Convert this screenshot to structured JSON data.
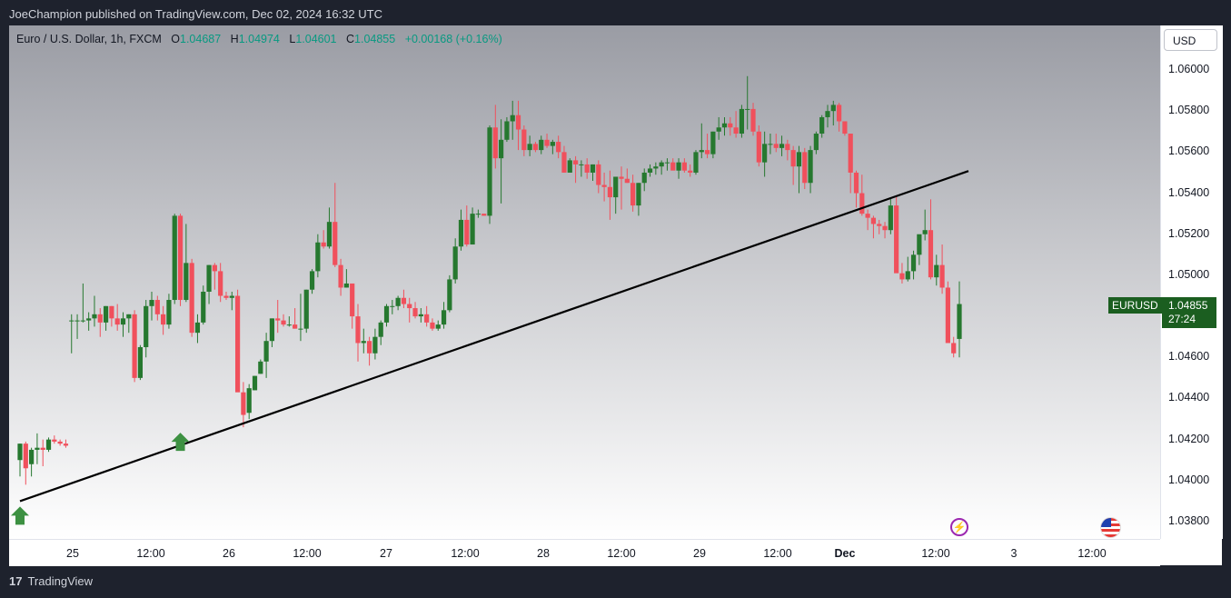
{
  "header": {
    "publisher": "JoeChampion published on TradingView.com, Dec 02, 2024 16:32 UTC"
  },
  "legend": {
    "symbol": "Euro / U.S. Dollar, 1h, FXCM",
    "o_label": "O",
    "o": "1.04687",
    "h_label": "H",
    "h": "1.04974",
    "l_label": "L",
    "l": "1.04601",
    "c_label": "C",
    "c": "1.04855",
    "change": "+0.00168 (+0.16%)"
  },
  "currency_button": "USD",
  "last_price": {
    "symbol": "EURUSD",
    "price": "1.04855",
    "countdown": "27:24"
  },
  "footer": {
    "brand": "TradingView"
  },
  "colors": {
    "up": "#26782f",
    "down": "#f0505c",
    "label_bg": "#1b5e20",
    "arrow": "#3d9142",
    "trendline": "#000000"
  },
  "icons": {
    "event_1": "lightning-icon",
    "event_2": "us-flag-icon"
  },
  "chart_data": {
    "type": "candlestick",
    "title": "Euro / U.S. Dollar, 1h, FXCM",
    "ylim": [
      1.0372,
      1.0618
    ],
    "y_ticks": [
      "1.06000",
      "1.05800",
      "1.05600",
      "1.05400",
      "1.05200",
      "1.05000",
      "1.04800",
      "1.04600",
      "1.04400",
      "1.04200",
      "1.04000",
      "1.03800"
    ],
    "x_ticks": [
      {
        "label": "25",
        "bold": false
      },
      {
        "label": "12:00",
        "bold": false
      },
      {
        "label": "26",
        "bold": false
      },
      {
        "label": "12:00",
        "bold": false
      },
      {
        "label": "27",
        "bold": false
      },
      {
        "label": "12:00",
        "bold": false
      },
      {
        "label": "28",
        "bold": false
      },
      {
        "label": "12:00",
        "bold": false
      },
      {
        "label": "29",
        "bold": false
      },
      {
        "label": "12:00",
        "bold": false
      },
      {
        "label": "Dec",
        "bold": true
      },
      {
        "label": "12:00",
        "bold": false
      },
      {
        "label": "3",
        "bold": false
      },
      {
        "label": "12:00",
        "bold": false
      }
    ],
    "bar_interval": "1h",
    "first_bar": "2024-11-24 22:00",
    "last_bar": "2024-12-02 16:00",
    "bars": [
      [
        1.041,
        1.0418,
        1.0402,
        1.0418
      ],
      [
        1.0418,
        1.0419,
        1.0398,
        1.0406
      ],
      [
        1.0408,
        1.0416,
        1.0402,
        1.0415
      ],
      [
        1.0415,
        1.0423,
        1.0408,
        1.0416
      ],
      [
        1.0416,
        1.042,
        1.0407,
        1.0415
      ],
      [
        1.0415,
        1.0421,
        1.0414,
        1.042
      ],
      [
        1.042,
        1.0422,
        1.0418,
        1.0419
      ],
      [
        1.0419,
        1.042,
        1.0417,
        1.0418
      ],
      [
        1.0418,
        1.042,
        1.0416,
        1.0417
      ],
      [
        1.0478,
        1.0481,
        1.0462,
        1.0478
      ],
      [
        1.0478,
        1.0481,
        1.0469,
        1.0478
      ],
      [
        1.0478,
        1.0496,
        1.0477,
        1.0478
      ],
      [
        1.0478,
        1.0482,
        1.0473,
        1.0479
      ],
      [
        1.0479,
        1.049,
        1.0475,
        1.0481
      ],
      [
        1.0481,
        1.0484,
        1.047,
        1.0477
      ],
      [
        1.0477,
        1.0485,
        1.0473,
        1.0485
      ],
      [
        1.0485,
        1.0485,
        1.0475,
        1.0479
      ],
      [
        1.0479,
        1.0486,
        1.0473,
        1.0476
      ],
      [
        1.0476,
        1.0482,
        1.047,
        1.0479
      ],
      [
        1.0479,
        1.0481,
        1.0472,
        1.0481
      ],
      [
        1.0481,
        1.0483,
        1.0448,
        1.045
      ],
      [
        1.045,
        1.0466,
        1.0449,
        1.0465
      ],
      [
        1.0465,
        1.0488,
        1.046,
        1.0485
      ],
      [
        1.0485,
        1.0492,
        1.0478,
        1.0488
      ],
      [
        1.0488,
        1.049,
        1.0478,
        1.0481
      ],
      [
        1.0481,
        1.0485,
        1.0471,
        1.0476
      ],
      [
        1.0476,
        1.0491,
        1.0474,
        1.0488
      ],
      [
        1.0488,
        1.053,
        1.0486,
        1.0529
      ],
      [
        1.0529,
        1.053,
        1.0485,
        1.0488
      ],
      [
        1.0488,
        1.0525,
        1.0487,
        1.0506
      ],
      [
        1.0506,
        1.0508,
        1.047,
        1.0472
      ],
      [
        1.0472,
        1.0481,
        1.0467,
        1.0477
      ],
      [
        1.0477,
        1.0495,
        1.0476,
        1.0492
      ],
      [
        1.0492,
        1.0505,
        1.0486,
        1.0505
      ],
      [
        1.0505,
        1.0506,
        1.0493,
        1.0502
      ],
      [
        1.0502,
        1.0506,
        1.0487,
        1.049
      ],
      [
        1.049,
        1.0492,
        1.0488,
        1.0489
      ],
      [
        1.0489,
        1.0492,
        1.0483,
        1.049
      ],
      [
        1.049,
        1.0493,
        1.0445,
        1.0443
      ],
      [
        1.0443,
        1.0448,
        1.0426,
        1.0432
      ],
      [
        1.0433,
        1.0447,
        1.043,
        1.0445
      ],
      [
        1.0444,
        1.0451,
        1.0444,
        1.0451
      ],
      [
        1.0452,
        1.0459,
        1.0452,
        1.0458
      ],
      [
        1.0458,
        1.0472,
        1.045,
        1.0468
      ],
      [
        1.0468,
        1.0479,
        1.0465,
        1.0479
      ],
      [
        1.0479,
        1.0488,
        1.0472,
        1.0478
      ],
      [
        1.0478,
        1.0481,
        1.0475,
        1.0476
      ],
      [
        1.0476,
        1.048,
        1.0475,
        1.0476
      ],
      [
        1.0476,
        1.0484,
        1.0474,
        1.0474
      ],
      [
        1.0474,
        1.0491,
        1.0468,
        1.0474
      ],
      [
        1.0474,
        1.0493,
        1.0472,
        1.0493
      ],
      [
        1.0493,
        1.0503,
        1.0491,
        1.0502
      ],
      [
        1.0502,
        1.052,
        1.0499,
        1.0516
      ],
      [
        1.0516,
        1.0522,
        1.0513,
        1.0514
      ],
      [
        1.0514,
        1.0533,
        1.0513,
        1.0526
      ],
      [
        1.0526,
        1.0545,
        1.0504,
        1.0505
      ],
      [
        1.0505,
        1.0508,
        1.049,
        1.0494
      ],
      [
        1.0494,
        1.0503,
        1.0494,
        1.0496
      ],
      [
        1.0496,
        1.0495,
        1.0474,
        1.048
      ],
      [
        1.048,
        1.0486,
        1.0458,
        1.0467
      ],
      [
        1.0467,
        1.0474,
        1.0462,
        1.0468
      ],
      [
        1.0468,
        1.047,
        1.0456,
        1.0462
      ],
      [
        1.0462,
        1.0474,
        1.0459,
        1.047
      ],
      [
        1.047,
        1.0478,
        1.0466,
        1.0477
      ],
      [
        1.0477,
        1.0486,
        1.0475,
        1.0485
      ],
      [
        1.0485,
        1.0488,
        1.0481,
        1.0485
      ],
      [
        1.0485,
        1.049,
        1.0483,
        1.0489
      ],
      [
        1.0489,
        1.0493,
        1.0484,
        1.0486
      ],
      [
        1.0486,
        1.0489,
        1.0477,
        1.0484
      ],
      [
        1.0484,
        1.0487,
        1.0479,
        1.048
      ],
      [
        1.048,
        1.0484,
        1.0477,
        1.0481
      ],
      [
        1.0481,
        1.0485,
        1.0475,
        1.0477
      ],
      [
        1.0477,
        1.0479,
        1.0473,
        1.0474
      ],
      [
        1.0474,
        1.0478,
        1.0473,
        1.0476
      ],
      [
        1.0476,
        1.0487,
        1.0474,
        1.0483
      ],
      [
        1.0483,
        1.05,
        1.0482,
        1.0498
      ],
      [
        1.0498,
        1.0518,
        1.0496,
        1.0514
      ],
      [
        1.0514,
        1.0532,
        1.0512,
        1.0527
      ],
      [
        1.0527,
        1.0534,
        1.0514,
        1.0515
      ],
      [
        1.0515,
        1.0533,
        1.0515,
        1.053
      ],
      [
        1.053,
        1.0532,
        1.0528,
        1.053
      ],
      [
        1.053,
        1.053,
        1.0529,
        1.0529
      ],
      [
        1.0529,
        1.0573,
        1.0525,
        1.0572
      ],
      [
        1.0572,
        1.0583,
        1.0552,
        1.0557
      ],
      [
        1.0557,
        1.0576,
        1.0535,
        1.0566
      ],
      [
        1.0566,
        1.0577,
        1.0565,
        1.0575
      ],
      [
        1.0575,
        1.0585,
        1.0566,
        1.0578
      ],
      [
        1.0578,
        1.0585,
        1.0561,
        1.0571
      ],
      [
        1.0571,
        1.0573,
        1.0558,
        1.0561
      ],
      [
        1.0561,
        1.0568,
        1.0558,
        1.0564
      ],
      [
        1.0564,
        1.0565,
        1.056,
        1.0561
      ],
      [
        1.0561,
        1.0568,
        1.0559,
        1.0566
      ],
      [
        1.0566,
        1.0569,
        1.0562,
        1.0563
      ],
      [
        1.0563,
        1.0566,
        1.0559,
        1.0565
      ],
      [
        1.0565,
        1.0568,
        1.0557,
        1.056
      ],
      [
        1.056,
        1.0563,
        1.055,
        1.055
      ],
      [
        1.055,
        1.0557,
        1.055,
        1.0556
      ],
      [
        1.0556,
        1.0558,
        1.0545,
        1.0554
      ],
      [
        1.0554,
        1.0556,
        1.0548,
        1.0554
      ],
      [
        1.0554,
        1.0557,
        1.0547,
        1.055
      ],
      [
        1.055,
        1.0554,
        1.0546,
        1.0554
      ],
      [
        1.0554,
        1.0556,
        1.054,
        1.0544
      ],
      [
        1.0544,
        1.055,
        1.0536,
        1.0543
      ],
      [
        1.0543,
        1.0551,
        1.0527,
        1.0538
      ],
      [
        1.0538,
        1.0545,
        1.053,
        1.0548
      ],
      [
        1.0548,
        1.0553,
        1.0532,
        1.0547
      ],
      [
        1.0547,
        1.0552,
        1.0545,
        1.0545
      ],
      [
        1.0545,
        1.0549,
        1.0531,
        1.0534
      ],
      [
        1.0534,
        1.0545,
        1.0529,
        1.0545
      ],
      [
        1.0545,
        1.0552,
        1.0541,
        1.055
      ],
      [
        1.055,
        1.0554,
        1.0548,
        1.0552
      ],
      [
        1.0552,
        1.0555,
        1.0549,
        1.0553
      ],
      [
        1.0553,
        1.0556,
        1.0549,
        1.0555
      ],
      [
        1.0555,
        1.0557,
        1.0551,
        1.0555
      ],
      [
        1.0555,
        1.0557,
        1.0552,
        1.0551
      ],
      [
        1.0551,
        1.0557,
        1.0547,
        1.0555
      ],
      [
        1.0555,
        1.0557,
        1.055,
        1.0551
      ],
      [
        1.0551,
        1.0554,
        1.0548,
        1.055
      ],
      [
        1.055,
        1.0561,
        1.0549,
        1.056
      ],
      [
        1.056,
        1.0574,
        1.0557,
        1.0561
      ],
      [
        1.0561,
        1.0569,
        1.0557,
        1.0559
      ],
      [
        1.0559,
        1.057,
        1.0557,
        1.057
      ],
      [
        1.057,
        1.0577,
        1.0566,
        1.0572
      ],
      [
        1.0572,
        1.0577,
        1.0568,
        1.0574
      ],
      [
        1.0574,
        1.0577,
        1.0568,
        1.0572
      ],
      [
        1.0572,
        1.058,
        1.0567,
        1.0569
      ],
      [
        1.0569,
        1.0583,
        1.0567,
        1.0581
      ],
      [
        1.0581,
        1.0597,
        1.0571,
        1.0581
      ],
      [
        1.0581,
        1.0584,
        1.0568,
        1.057
      ],
      [
        1.057,
        1.0573,
        1.0553,
        1.0555
      ],
      [
        1.0555,
        1.057,
        1.0548,
        1.0564
      ],
      [
        1.0564,
        1.0569,
        1.0559,
        1.0564
      ],
      [
        1.0564,
        1.0569,
        1.056,
        1.0562
      ],
      [
        1.0562,
        1.0568,
        1.0558,
        1.0564
      ],
      [
        1.0564,
        1.0566,
        1.0556,
        1.0561
      ],
      [
        1.0561,
        1.0563,
        1.0544,
        1.0553
      ],
      [
        1.0553,
        1.0563,
        1.054,
        1.056
      ],
      [
        1.056,
        1.0562,
        1.0542,
        1.0545
      ],
      [
        1.0545,
        1.0563,
        1.054,
        1.0561
      ],
      [
        1.0561,
        1.057,
        1.0559,
        1.0569
      ],
      [
        1.0569,
        1.0578,
        1.0567,
        1.0577
      ],
      [
        1.0577,
        1.0583,
        1.0572,
        1.058
      ],
      [
        1.058,
        1.0585,
        1.0573,
        1.0583
      ],
      [
        1.0583,
        1.0584,
        1.057,
        1.0575
      ],
      [
        1.0575,
        1.0575,
        1.0568,
        1.0569
      ],
      [
        1.0569,
        1.0569,
        1.054,
        1.055
      ],
      [
        1.055,
        1.0551,
        1.0533,
        1.054
      ],
      [
        1.054,
        1.0549,
        1.0529,
        1.053
      ],
      [
        1.053,
        1.0532,
        1.0522,
        1.0528
      ],
      [
        1.0528,
        1.0529,
        1.0518,
        1.0525
      ],
      [
        1.0525,
        1.0527,
        1.052,
        1.0524
      ],
      [
        1.0524,
        1.0526,
        1.0518,
        1.0522
      ],
      [
        1.0522,
        1.0538,
        1.052,
        1.0534
      ],
      [
        1.0534,
        1.0538,
        1.0512,
        1.0501
      ],
      [
        1.0501,
        1.0506,
        1.0496,
        1.0498
      ],
      [
        1.0498,
        1.0509,
        1.0497,
        1.0502
      ],
      [
        1.0502,
        1.0512,
        1.0498,
        1.051
      ],
      [
        1.051,
        1.0517,
        1.0505,
        1.052
      ],
      [
        1.052,
        1.0532,
        1.0517,
        1.0522
      ],
      [
        1.0522,
        1.0537,
        1.0498,
        1.0499
      ],
      [
        1.0499,
        1.051,
        1.0495,
        1.0505
      ],
      [
        1.0505,
        1.0515,
        1.0491,
        1.0494
      ],
      [
        1.0494,
        1.0497,
        1.0478,
        1.0467
      ],
      [
        1.0467,
        1.047,
        1.046,
        1.0462
      ],
      [
        1.0469,
        1.0497,
        1.046,
        1.0486
      ]
    ]
  },
  "trendline": {
    "start": {
      "date": "2024-11-24 22:00",
      "price": 1.039
    },
    "end": {
      "date": "2024-12-02 16:00",
      "price": 1.0549
    }
  },
  "signals": [
    {
      "type": "up-arrow",
      "date": "2024-11-24 22:00",
      "price": 1.039
    },
    {
      "type": "up-arrow",
      "date": "2024-11-26 00:00",
      "price": 1.0426
    }
  ]
}
